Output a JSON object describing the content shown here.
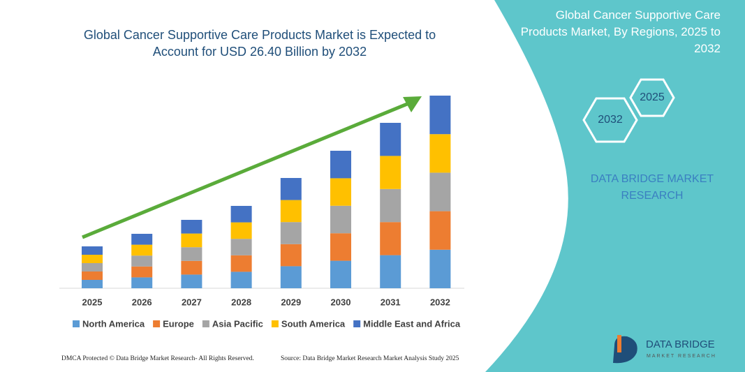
{
  "chart_data": {
    "type": "stacked_bar",
    "title": "Global Cancer Supportive Care Products Market is Expected to Account for USD 26.40 Billion by 2032",
    "categories": [
      "2025",
      "2026",
      "2027",
      "2028",
      "2029",
      "2030",
      "2031",
      "2032"
    ],
    "series": [
      {
        "name": "North America",
        "color": "#5b9bd5",
        "values": [
          12,
          15.6,
          19.6,
          23.6,
          31.6,
          39.4,
          47.4,
          55.2
        ]
      },
      {
        "name": "Europe",
        "color": "#ed7d31",
        "values": [
          12,
          15.6,
          19.6,
          23.6,
          31.6,
          39.4,
          47.4,
          55.2
        ]
      },
      {
        "name": "Asia Pacific",
        "color": "#a5a5a5",
        "values": [
          12,
          15.6,
          19.6,
          23.6,
          31.6,
          39.4,
          47.4,
          55.2
        ]
      },
      {
        "name": "South America",
        "color": "#ffc000",
        "values": [
          12,
          15.6,
          19.6,
          23.6,
          31.6,
          39.4,
          47.4,
          55.2
        ]
      },
      {
        "name": "Middle East and Africa",
        "color": "#4472c4",
        "values": [
          12,
          15.6,
          19.6,
          23.6,
          31.6,
          39.4,
          47.4,
          55.2
        ]
      }
    ],
    "legend": "bottom"
  },
  "panel": {
    "title": "Global Cancer Supportive Care Products Market, By Regions, 2025 to 2032",
    "hex_labels": [
      "2025",
      "2032"
    ],
    "company": "DATA BRIDGE MARKET RESEARCH"
  },
  "logo": {
    "name": "DATA BRIDGE",
    "tagline": "MARKET RESEARCH"
  },
  "footer": {
    "left": "DMCA Protected © Data Bridge Market Research- All Rights Reserved.",
    "right": "Source: Data Bridge Market Research Market Analysis Study 2025"
  }
}
